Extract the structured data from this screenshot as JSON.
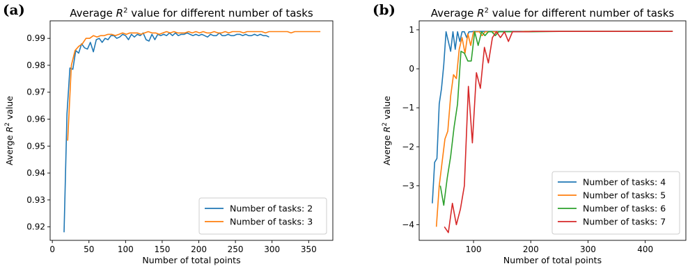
{
  "chart_data": [
    {
      "type": "line",
      "panel_label": "(a)",
      "title_pre": "Average ",
      "title_var": "R",
      "title_sup": "2",
      "title_post": " value for different number of tasks",
      "xlabel": "Number of total points",
      "ylabel_pre": "Averge ",
      "ylabel_var": "R",
      "ylabel_sup": "2",
      "ylabel_post": " value",
      "xlim": [
        -3,
        383
      ],
      "ylim": [
        0.915,
        0.9965
      ],
      "xticks": [
        0,
        50,
        100,
        150,
        200,
        250,
        300,
        350
      ],
      "yticks": [
        0.92,
        0.93,
        0.94,
        0.95,
        0.96,
        0.97,
        0.98,
        0.99
      ],
      "ytick_labels": [
        "0.92",
        "0.93",
        "0.94",
        "0.95",
        "0.96",
        "0.97",
        "0.98",
        "0.99"
      ],
      "legend_position": "lower-right",
      "series": [
        {
          "name": "Number of tasks: 2",
          "color": "#1f77b4",
          "x": [
            16,
            20,
            24,
            28,
            32,
            36,
            40,
            44,
            48,
            52,
            56,
            60,
            64,
            68,
            72,
            76,
            80,
            84,
            88,
            92,
            96,
            100,
            104,
            108,
            112,
            116,
            120,
            124,
            128,
            132,
            136,
            140,
            144,
            148,
            152,
            156,
            160,
            164,
            168,
            172,
            176,
            180,
            184,
            188,
            192,
            196,
            200,
            204,
            208,
            212,
            216,
            220,
            224,
            228,
            232,
            236,
            240,
            244,
            248,
            252,
            256,
            260,
            264,
            268,
            272,
            276,
            280,
            284,
            288,
            292,
            296
          ],
          "y": [
            0.918,
            0.962,
            0.979,
            0.9785,
            0.9855,
            0.9845,
            0.988,
            0.9865,
            0.986,
            0.9885,
            0.985,
            0.9895,
            0.99,
            0.9885,
            0.99,
            0.9895,
            0.991,
            0.991,
            0.99,
            0.9905,
            0.9915,
            0.991,
            0.9895,
            0.9915,
            0.9905,
            0.9915,
            0.991,
            0.992,
            0.9895,
            0.989,
            0.9915,
            0.9895,
            0.9915,
            0.991,
            0.9915,
            0.991,
            0.992,
            0.991,
            0.992,
            0.991,
            0.9915,
            0.9915,
            0.992,
            0.9915,
            0.991,
            0.9915,
            0.991,
            0.9915,
            0.991,
            0.9905,
            0.9915,
            0.991,
            0.991,
            0.992,
            0.991,
            0.991,
            0.9915,
            0.991,
            0.991,
            0.9915,
            0.9915,
            0.991,
            0.9915,
            0.991,
            0.991,
            0.9915,
            0.991,
            0.9915,
            0.991,
            0.991,
            0.9905
          ]
        },
        {
          "name": "Number of tasks: 3",
          "color": "#ff7f0e",
          "x": [
            21,
            26,
            31,
            36,
            41,
            46,
            51,
            56,
            61,
            66,
            71,
            76,
            81,
            86,
            91,
            96,
            101,
            106,
            111,
            116,
            121,
            126,
            131,
            136,
            141,
            146,
            151,
            156,
            161,
            166,
            171,
            176,
            181,
            186,
            191,
            196,
            201,
            206,
            211,
            216,
            221,
            226,
            231,
            236,
            241,
            246,
            251,
            256,
            261,
            266,
            271,
            276,
            281,
            286,
            291,
            296,
            301,
            306,
            311,
            316,
            321,
            326,
            331,
            336,
            341,
            346,
            351,
            356,
            361,
            366
          ],
          "y": [
            0.952,
            0.98,
            0.9855,
            0.987,
            0.988,
            0.99,
            0.99,
            0.991,
            0.9905,
            0.991,
            0.991,
            0.9915,
            0.9915,
            0.991,
            0.9915,
            0.992,
            0.9915,
            0.992,
            0.992,
            0.992,
            0.9915,
            0.992,
            0.9925,
            0.992,
            0.992,
            0.9915,
            0.992,
            0.9925,
            0.992,
            0.9925,
            0.992,
            0.992,
            0.992,
            0.9925,
            0.992,
            0.9925,
            0.992,
            0.9925,
            0.992,
            0.992,
            0.9925,
            0.992,
            0.992,
            0.9925,
            0.992,
            0.9925,
            0.9925,
            0.9925,
            0.992,
            0.9925,
            0.9925,
            0.9925,
            0.9925,
            0.9925,
            0.992,
            0.9925,
            0.9925,
            0.9925,
            0.9925,
            0.9925,
            0.9925,
            0.992,
            0.9925,
            0.9925,
            0.9925,
            0.9925,
            0.9925,
            0.9925,
            0.9925,
            0.9925
          ]
        }
      ]
    },
    {
      "type": "line",
      "panel_label": "(b)",
      "title_pre": "Average ",
      "title_var": "R",
      "title_sup": "2",
      "title_post": " value for different number of tasks",
      "xlabel": "Number of total points",
      "ylabel_pre": "Averge ",
      "ylabel_var": "R",
      "ylabel_sup": "2",
      "ylabel_post": " value",
      "xlim": [
        5,
        471
      ],
      "ylim": [
        -4.4,
        1.23
      ],
      "xticks": [
        100,
        200,
        300,
        400
      ],
      "yticks": [
        -4,
        -3,
        -2,
        -1,
        0,
        1
      ],
      "ytick_labels": [
        "−4",
        "−3",
        "−2",
        "−1",
        "0",
        "1"
      ],
      "legend_position": "lower-right",
      "series": [
        {
          "name": "Number of tasks: 4",
          "color": "#1f77b4",
          "x": [
            28,
            32,
            36,
            40,
            44,
            48,
            52,
            56,
            60,
            64,
            68,
            72,
            76,
            80,
            84,
            88,
            92,
            96,
            100,
            104,
            108,
            112,
            116,
            120,
            124,
            128,
            132,
            136,
            140,
            150,
            160,
            170,
            180,
            190,
            200,
            250,
            300,
            350,
            400,
            448
          ],
          "y": [
            -3.45,
            -2.4,
            -2.3,
            -0.9,
            -0.5,
            0.1,
            0.95,
            0.7,
            0.45,
            0.95,
            0.5,
            0.95,
            0.7,
            0.95,
            0.95,
            0.8,
            0.95,
            0.95,
            0.96,
            0.96,
            0.96,
            0.96,
            0.96,
            0.96,
            0.96,
            0.96,
            0.96,
            0.96,
            0.96,
            0.96,
            0.96,
            0.96,
            0.96,
            0.96,
            0.96,
            0.96,
            0.96,
            0.96,
            0.96,
            0.96
          ]
        },
        {
          "name": "Number of tasks: 5",
          "color": "#ff7f0e",
          "x": [
            35,
            40,
            45,
            50,
            55,
            60,
            65,
            70,
            75,
            80,
            85,
            90,
            95,
            100,
            105,
            110,
            115,
            120,
            125,
            130,
            135,
            140,
            145,
            150,
            160,
            170,
            180,
            190,
            200,
            250,
            300,
            350,
            400,
            448
          ],
          "y": [
            -4.05,
            -3.0,
            -2.4,
            -1.8,
            -1.6,
            -0.7,
            -0.15,
            -0.25,
            0.5,
            0.8,
            0.4,
            0.9,
            0.6,
            0.95,
            0.95,
            0.95,
            0.85,
            0.95,
            0.95,
            0.95,
            0.95,
            0.95,
            0.95,
            0.95,
            0.95,
            0.95,
            0.95,
            0.96,
            0.96,
            0.96,
            0.96,
            0.96,
            0.96,
            0.96
          ]
        },
        {
          "name": "Number of tasks: 6",
          "color": "#2ca02c",
          "x": [
            42,
            48,
            54,
            60,
            66,
            72,
            78,
            84,
            90,
            96,
            102,
            108,
            114,
            120,
            126,
            132,
            138,
            144,
            150,
            160,
            170,
            180,
            190,
            200,
            250,
            300,
            350,
            400,
            448
          ],
          "y": [
            -3.0,
            -3.5,
            -2.8,
            -2.25,
            -1.5,
            -0.9,
            0.45,
            0.4,
            0.2,
            0.2,
            0.95,
            0.6,
            0.95,
            0.85,
            0.95,
            0.95,
            0.85,
            0.95,
            0.95,
            0.95,
            0.95,
            0.95,
            0.95,
            0.95,
            0.96,
            0.96,
            0.96,
            0.96,
            0.96
          ]
        },
        {
          "name": "Number of tasks: 7",
          "color": "#d62728",
          "x": [
            49,
            56,
            63,
            70,
            77,
            84,
            91,
            98,
            105,
            112,
            119,
            126,
            133,
            140,
            147,
            154,
            161,
            168,
            175,
            182,
            189,
            196,
            203,
            250,
            300,
            350,
            400,
            448
          ],
          "y": [
            -4.05,
            -4.2,
            -3.45,
            -4.0,
            -3.6,
            -3.0,
            -0.45,
            -1.9,
            -0.1,
            -0.5,
            0.55,
            0.15,
            0.8,
            0.95,
            0.8,
            0.95,
            0.7,
            0.95,
            0.95,
            0.95,
            0.95,
            0.95,
            0.96,
            0.96,
            0.96,
            0.96,
            0.96,
            0.96
          ]
        }
      ]
    }
  ]
}
